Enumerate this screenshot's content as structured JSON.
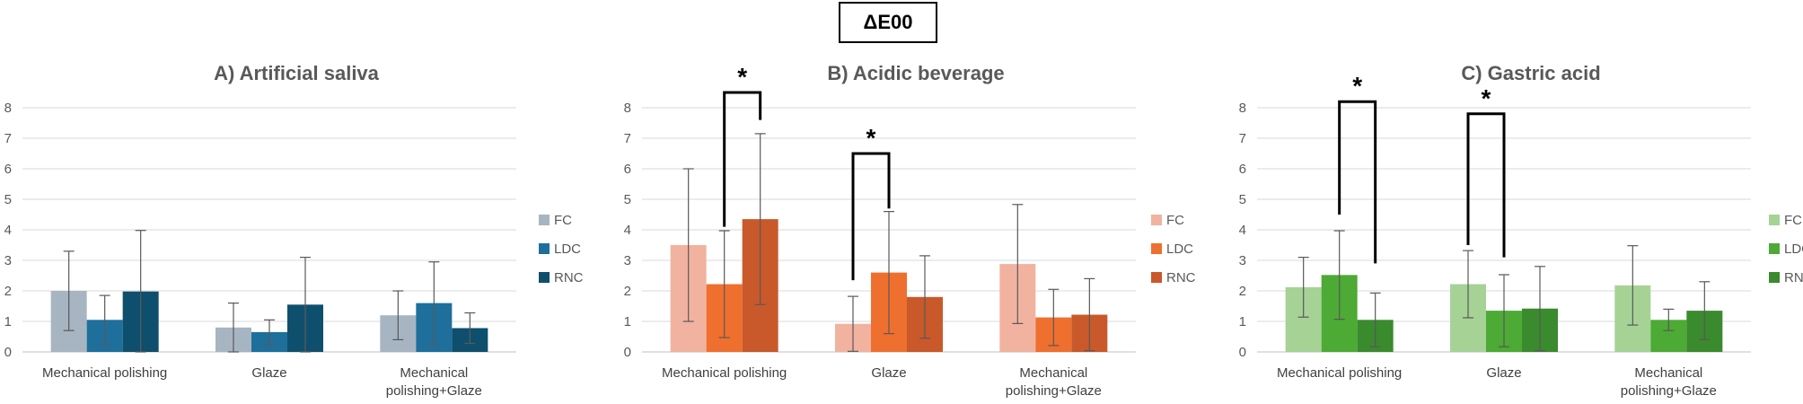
{
  "figure_title": "ΔE00",
  "chart_data": [
    {
      "type": "bar",
      "title": "A) Artificial saliva",
      "categories": [
        "Mechanical polishing",
        "Glaze",
        "Mechanical polishing+Glaze"
      ],
      "category_labels": [
        [
          "Mechanical polishing"
        ],
        [
          "Glaze"
        ],
        [
          "Mechanical",
          "polishing+Glaze"
        ]
      ],
      "ylim": [
        0,
        8
      ],
      "yticks": [
        "0",
        "1",
        "2",
        "3",
        "4",
        "5",
        "6",
        "7",
        "8"
      ],
      "xlabel": "",
      "ylabel": "",
      "grid": true,
      "legend_position": "right",
      "series": [
        {
          "name": "FC",
          "color": "#a7b5c2",
          "values": [
            2.0,
            0.8,
            1.2
          ],
          "errors": [
            1.3,
            0.8,
            0.8
          ]
        },
        {
          "name": "LDC",
          "color": "#1e6f9c",
          "values": [
            1.05,
            0.65,
            1.6
          ],
          "errors": [
            0.8,
            0.4,
            1.35
          ]
        },
        {
          "name": "RNC",
          "color": "#0f4f6e",
          "values": [
            1.98,
            1.55,
            0.78
          ],
          "errors": [
            2.0,
            1.55,
            0.5
          ]
        }
      ],
      "significance": []
    },
    {
      "type": "bar",
      "title": "B) Acidic beverage",
      "categories": [
        "Mechanical polishing",
        "Glaze",
        "Mechanical polishing+Glaze"
      ],
      "category_labels": [
        [
          "Mechanical polishing"
        ],
        [
          "Glaze"
        ],
        [
          "Mechanical",
          "polishing+Glaze"
        ]
      ],
      "ylim": [
        0,
        8
      ],
      "yticks": [
        "0",
        "1",
        "2",
        "3",
        "4",
        "5",
        "6",
        "7",
        "8"
      ],
      "xlabel": "",
      "ylabel": "",
      "grid": true,
      "legend_position": "right",
      "series": [
        {
          "name": "FC",
          "color": "#f2b2a0",
          "values": [
            3.5,
            0.92,
            2.88
          ],
          "errors": [
            2.5,
            0.9,
            1.95
          ]
        },
        {
          "name": "LDC",
          "color": "#ef6f2e",
          "values": [
            2.22,
            2.6,
            1.13
          ],
          "errors": [
            1.75,
            2.0,
            0.92
          ]
        },
        {
          "name": "RNC",
          "color": "#c9592a",
          "values": [
            4.35,
            1.8,
            1.22
          ],
          "errors": [
            2.8,
            1.35,
            1.18
          ]
        }
      ],
      "significance": [
        {
          "category": 0,
          "from": 1,
          "to": 2,
          "label": "*",
          "bracket_top": 8.5,
          "from_base": 4.1,
          "to_base": 7.6
        },
        {
          "category": 1,
          "from": 0,
          "to": 1,
          "label": "*",
          "bracket_top": 6.5,
          "from_base": 2.35,
          "to_base": 4.7
        }
      ]
    },
    {
      "type": "bar",
      "title": "C) Gastric acid",
      "categories": [
        "Mechanical polishing",
        "Glaze",
        "Mechanical polishing+Glaze"
      ],
      "category_labels": [
        [
          "Mechanical polishing"
        ],
        [
          "Glaze"
        ],
        [
          "Mechanical",
          "polishing+Glaze"
        ]
      ],
      "ylim": [
        0,
        8
      ],
      "yticks": [
        "0",
        "1",
        "2",
        "3",
        "4",
        "5",
        "6",
        "7",
        "8"
      ],
      "xlabel": "",
      "ylabel": "",
      "grid": true,
      "legend_position": "right",
      "series": [
        {
          "name": "FC",
          "color": "#a6d296",
          "values": [
            2.12,
            2.22,
            2.18
          ],
          "errors": [
            0.98,
            1.1,
            1.3
          ]
        },
        {
          "name": "LDC",
          "color": "#4caa35",
          "values": [
            2.52,
            1.35,
            1.05
          ],
          "errors": [
            1.45,
            1.18,
            0.35
          ]
        },
        {
          "name": "RNC",
          "color": "#3a8a2e",
          "values": [
            1.05,
            1.42,
            1.35
          ],
          "errors": [
            0.88,
            1.38,
            0.95
          ]
        }
      ],
      "significance": [
        {
          "category": 0,
          "from": 1,
          "to": 2,
          "label": "*",
          "bracket_top": 8.2,
          "from_base": 4.5,
          "to_base": 2.9
        },
        {
          "category": 1,
          "from": 0,
          "to": 1,
          "label": "*",
          "bracket_top": 7.8,
          "from_base": 3.5,
          "to_base": 3.1
        }
      ]
    }
  ]
}
